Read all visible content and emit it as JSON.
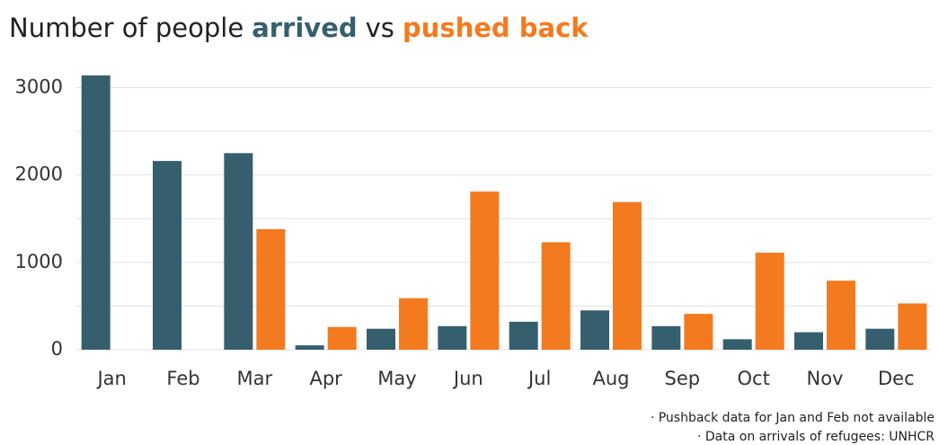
{
  "chart_data": {
    "type": "bar",
    "title": "Number of people",
    "title_joiner": "vs",
    "categories": [
      "Jan",
      "Feb",
      "Mar",
      "Apr",
      "May",
      "Jun",
      "Jul",
      "Aug",
      "Sep",
      "Oct",
      "Nov",
      "Dec"
    ],
    "series": [
      {
        "name": "arrived",
        "color": "#365f6e",
        "values": [
          3140,
          2160,
          2250,
          50,
          240,
          270,
          320,
          450,
          270,
          120,
          200,
          240
        ]
      },
      {
        "name": "pushed back",
        "color": "#f47a1f",
        "values": [
          null,
          null,
          1380,
          260,
          590,
          1810,
          1230,
          1690,
          410,
          1110,
          790,
          530
        ]
      }
    ],
    "ylim": [
      0,
      3200
    ],
    "yticks": [
      0,
      1000,
      2000,
      3000
    ],
    "minor_yticks": [
      500,
      1500,
      2500
    ],
    "grid": true,
    "notes": [
      "· Pushback data for Jan and Feb not available",
      "· Data on arrivals of refugees: UNHCR"
    ]
  }
}
